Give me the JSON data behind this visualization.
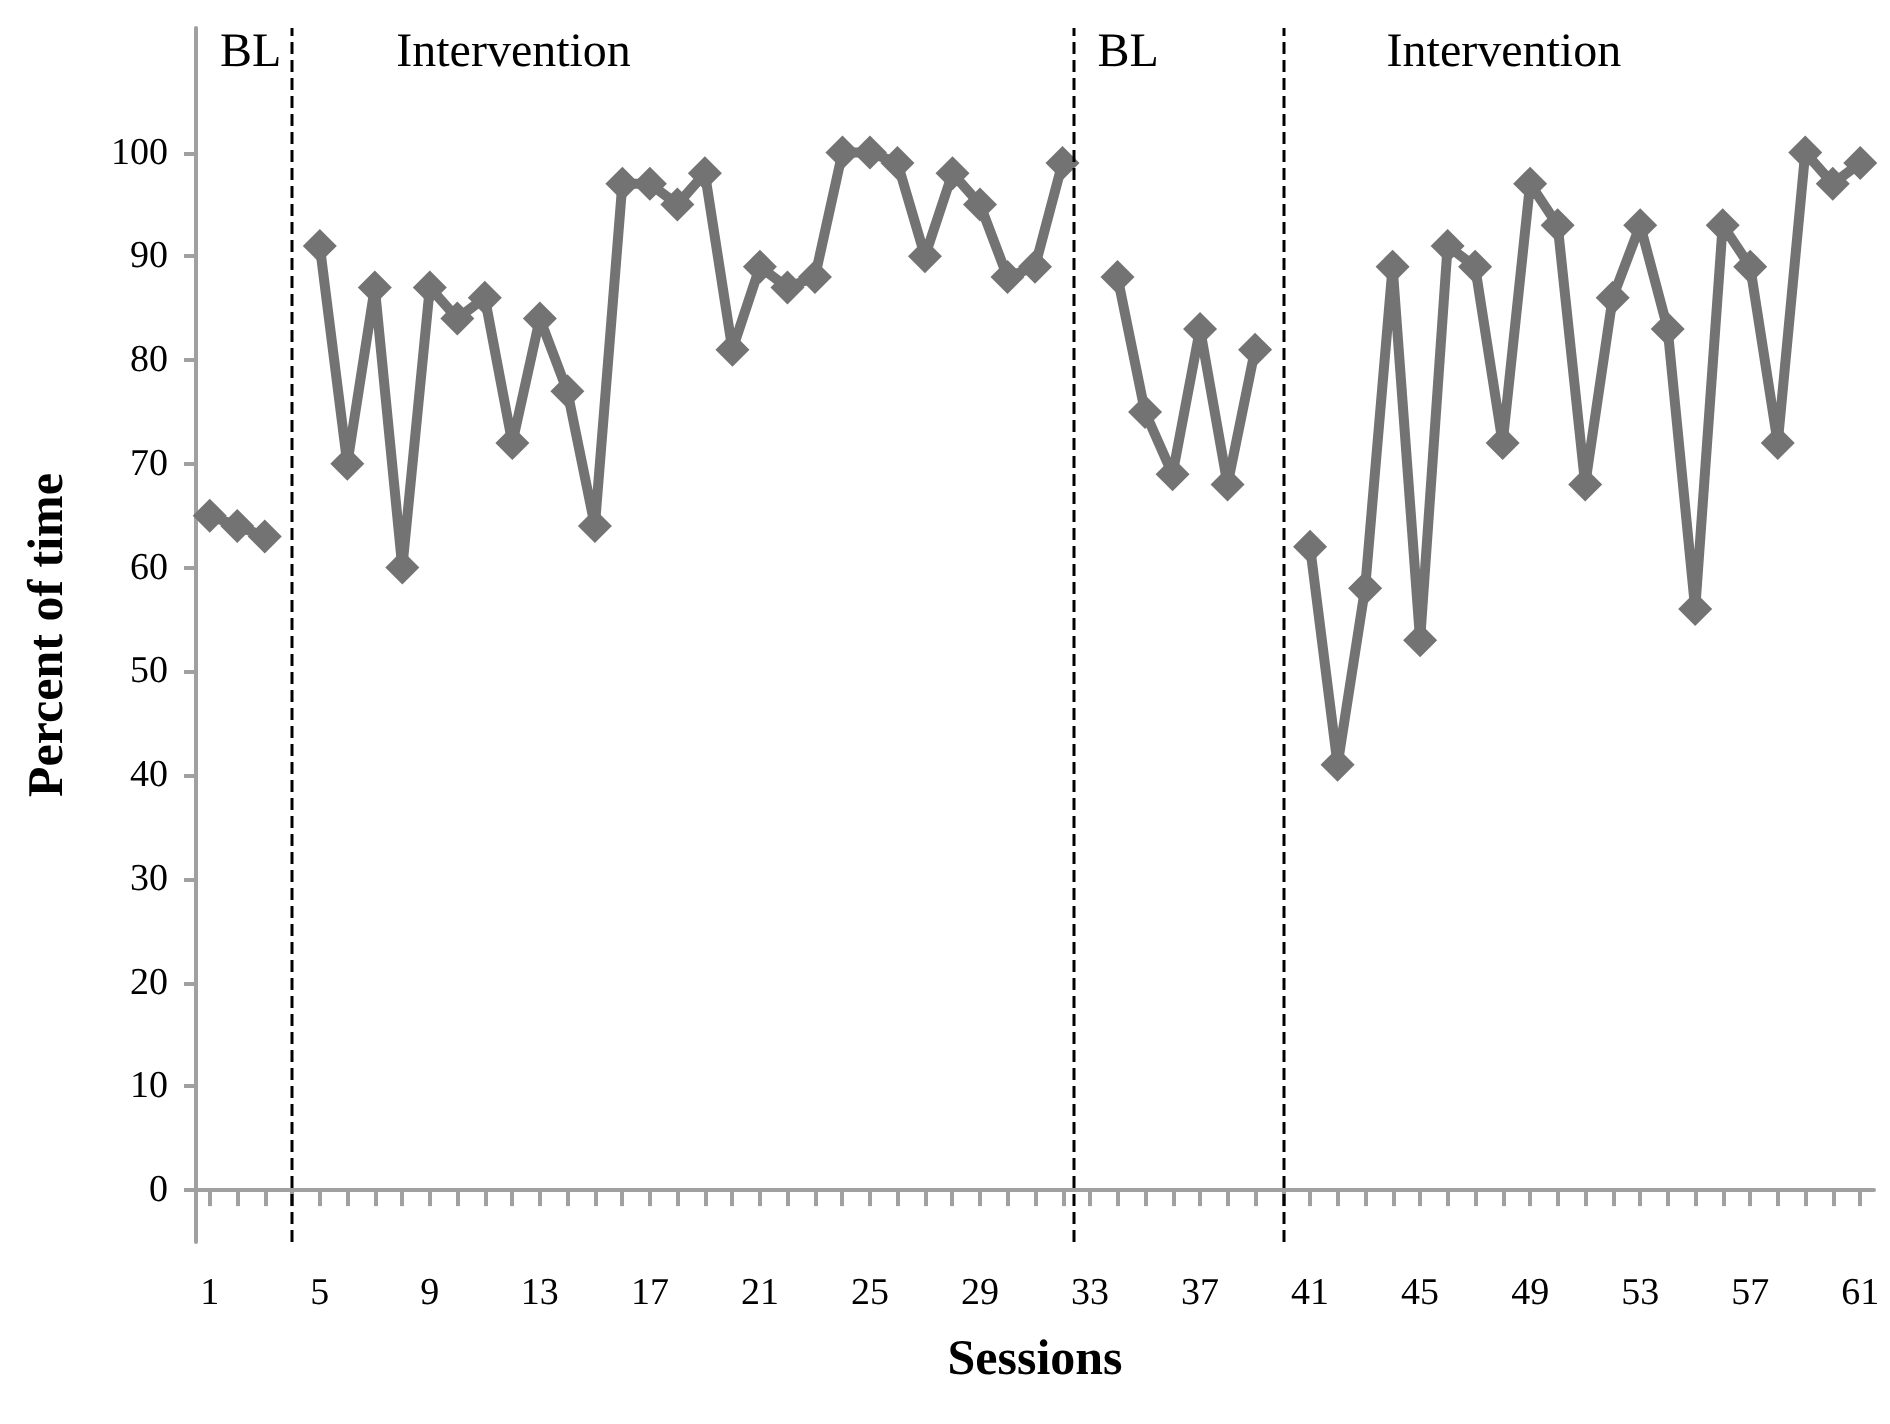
{
  "chart_data": {
    "type": "line",
    "xlabel": "Sessions",
    "ylabel": "Percent of time",
    "x": [
      1,
      2,
      3,
      4,
      5,
      6,
      7,
      8,
      9,
      10,
      11,
      12,
      13,
      14,
      15,
      16,
      17,
      18,
      19,
      20,
      21,
      22,
      23,
      24,
      25,
      26,
      27,
      28,
      29,
      30,
      31,
      32,
      33,
      34,
      35,
      36,
      37,
      38,
      39,
      40,
      41,
      42,
      43,
      44,
      45,
      46,
      47,
      48,
      49,
      50,
      51,
      52,
      53,
      54,
      55,
      56,
      57,
      58,
      59,
      60,
      61
    ],
    "series": [
      {
        "color": "#737373",
        "values": [
          65,
          64,
          63,
          null,
          91,
          70,
          87,
          60,
          87,
          84,
          86,
          72,
          84,
          77,
          64,
          97,
          97,
          95,
          98,
          81,
          89,
          87,
          88,
          100,
          100,
          99,
          90,
          98,
          95,
          88,
          89,
          99,
          null,
          88,
          75,
          69,
          83,
          68,
          81,
          null,
          62,
          41,
          58,
          89,
          53,
          91,
          89,
          72,
          97,
          93,
          68,
          86,
          93,
          83,
          56,
          93,
          89,
          72,
          100,
          97,
          99
        ]
      }
    ],
    "xlim": [
      0.5,
      61.5
    ],
    "xticks": [
      1,
      5,
      9,
      13,
      17,
      21,
      25,
      29,
      33,
      37,
      41,
      45,
      49,
      53,
      57,
      61
    ],
    "ylim": [
      -5,
      112
    ],
    "yticks": [
      0,
      10,
      20,
      30,
      40,
      50,
      60,
      70,
      80,
      90,
      100
    ],
    "ref_lines": [
      {
        "axis": "x",
        "value": 4,
        "label": null,
        "color": "#000000",
        "line_style": "dashed"
      },
      {
        "axis": "x",
        "value": 32.4,
        "label": null,
        "color": "#000000",
        "line_style": "dashed"
      },
      {
        "axis": "x",
        "value": 40,
        "label": null,
        "color": "#000000",
        "line_style": "dashed"
      }
    ],
    "annotations": [
      "BL",
      "Intervention",
      "BL",
      "Intervention"
    ],
    "marker": "diamond",
    "line_style": "solid",
    "grid": false
  }
}
